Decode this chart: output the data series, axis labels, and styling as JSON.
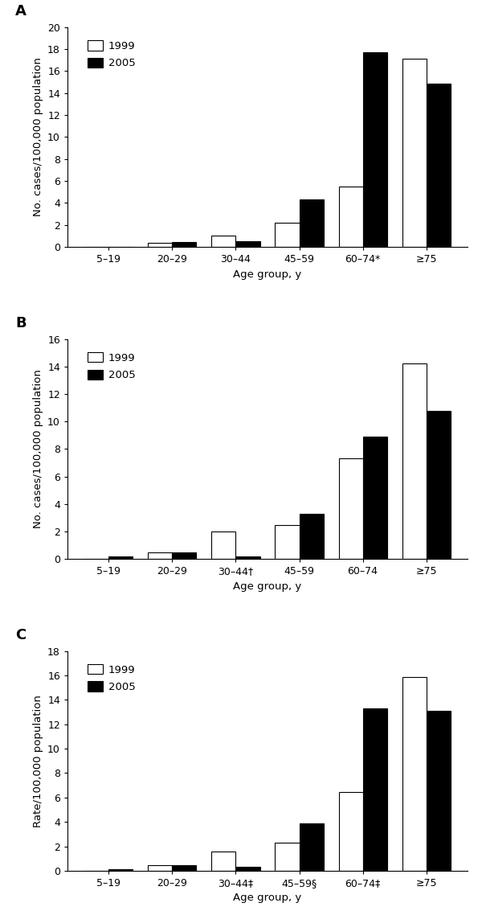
{
  "panels": [
    {
      "label": "A",
      "ylabel": "No. cases/100,000 population",
      "ylim": [
        0,
        20
      ],
      "yticks": [
        0,
        2,
        4,
        6,
        8,
        10,
        12,
        14,
        16,
        18,
        20
      ],
      "categories": [
        "5–19",
        "20–29",
        "30–44",
        "45–59",
        "60–74*",
        "≥75"
      ],
      "values_1999": [
        0,
        0.4,
        1.0,
        2.2,
        5.5,
        17.1
      ],
      "values_2005": [
        0,
        0.45,
        0.55,
        4.35,
        17.7,
        14.9
      ]
    },
    {
      "label": "B",
      "ylabel": "No. cases/100,000 population",
      "ylim": [
        0,
        16
      ],
      "yticks": [
        0,
        2,
        4,
        6,
        8,
        10,
        12,
        14,
        16
      ],
      "categories": [
        "5–19",
        "20–29",
        "30–44†",
        "45–59",
        "60–74",
        "≥75"
      ],
      "values_1999": [
        0,
        0.45,
        2.0,
        2.45,
        7.3,
        14.2
      ],
      "values_2005": [
        0.2,
        0.45,
        0.2,
        3.25,
        8.9,
        10.8
      ]
    },
    {
      "label": "C",
      "ylabel": "Rate/100,000 population",
      "ylim": [
        0,
        18
      ],
      "yticks": [
        0,
        2,
        4,
        6,
        8,
        10,
        12,
        14,
        16,
        18
      ],
      "categories": [
        "5–19",
        "20–29",
        "30–44‡",
        "45–59§",
        "60–74‡",
        "≥75"
      ],
      "values_1999": [
        0,
        0.45,
        1.6,
        2.3,
        6.45,
        15.9
      ],
      "values_2005": [
        0.15,
        0.45,
        0.35,
        3.85,
        13.3,
        13.1
      ]
    }
  ],
  "color_1999": "#ffffff",
  "color_2005": "#000000",
  "edge_color": "#000000",
  "bar_width": 0.38,
  "legend_labels": [
    "1999",
    "2005"
  ],
  "xlabel": "Age group, y",
  "background_color": "#ffffff",
  "font_size": 9.5,
  "label_fontsize": 13,
  "tick_fontsize": 9
}
